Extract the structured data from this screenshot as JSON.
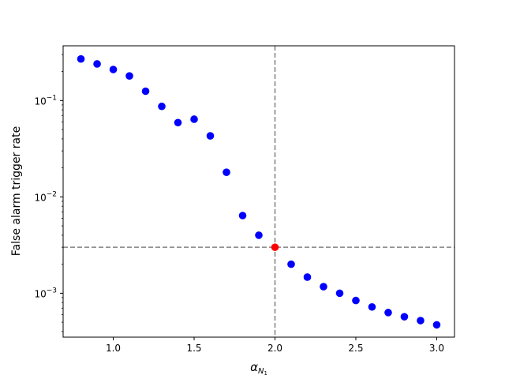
{
  "chart_data": {
    "type": "scatter",
    "title": "",
    "xlabel_main": "α",
    "xlabel_sub": "N",
    "xlabel_subsub": "1",
    "ylabel": "False alarm trigger rate",
    "yscale": "log",
    "xlim": [
      0.69,
      3.11
    ],
    "ylim": [
      0.00035,
      0.37
    ],
    "xticks": [
      1.0,
      1.5,
      2.0,
      2.5,
      3.0
    ],
    "xtick_labels": [
      "1.0",
      "1.5",
      "2.0",
      "2.5",
      "3.0"
    ],
    "yticks": [
      0.001,
      0.01,
      0.1
    ],
    "ytick_bases": [
      "10",
      "10",
      "10"
    ],
    "ytick_exponents": [
      "−3",
      "−2",
      "−1"
    ],
    "grid": false,
    "series": [
      {
        "color": "#0000ff",
        "x": [
          0.8,
          0.9,
          1.0,
          1.1,
          1.2,
          1.3,
          1.4,
          1.5,
          1.6,
          1.7,
          1.8,
          1.9,
          2.1,
          2.2,
          2.3,
          2.4,
          2.5,
          2.6,
          2.7,
          2.8,
          2.9,
          3.0
        ],
        "y": [
          0.27,
          0.24,
          0.21,
          0.18,
          0.125,
          0.087,
          0.059,
          0.064,
          0.043,
          0.018,
          0.0064,
          0.004,
          0.002,
          0.00147,
          0.00117,
          0.001,
          0.00084,
          0.00072,
          0.00063,
          0.00057,
          0.00052,
          0.00047
        ]
      },
      {
        "color": "#ff0000",
        "x": [
          2.0
        ],
        "y": [
          0.003
        ]
      }
    ],
    "reference_lines": {
      "vertical_x": 2.0,
      "horizontal_y": 0.003,
      "color": "#808080",
      "style": "dashed"
    }
  }
}
